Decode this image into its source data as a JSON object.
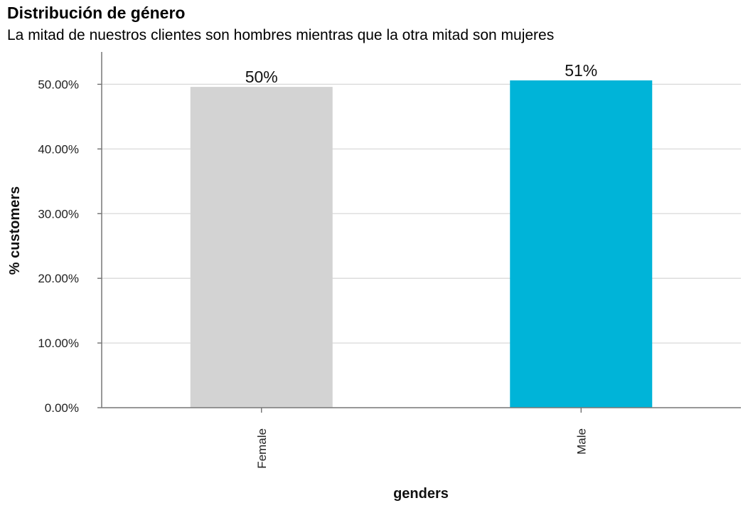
{
  "chart_data": {
    "type": "bar",
    "title": "Distribución de género",
    "subtitle": "La mitad de nuestros clientes son hombres mientras que la otra mitad son mujeres",
    "xlabel": "genders",
    "ylabel": "% customers",
    "categories": [
      "Female",
      "Male"
    ],
    "values": [
      49.6,
      50.6
    ],
    "data_labels": [
      "50%",
      "51%"
    ],
    "bar_colors": [
      "#d3d3d3",
      "#00b4d8"
    ],
    "ylim": [
      0,
      55
    ],
    "yticks": [
      0,
      10,
      20,
      30,
      40,
      50
    ],
    "ytick_labels": [
      "0.00%",
      "10.00%",
      "20.00%",
      "30.00%",
      "40.00%",
      "50.00%"
    ],
    "grid": true,
    "x_tick_rotation": "vertical"
  }
}
